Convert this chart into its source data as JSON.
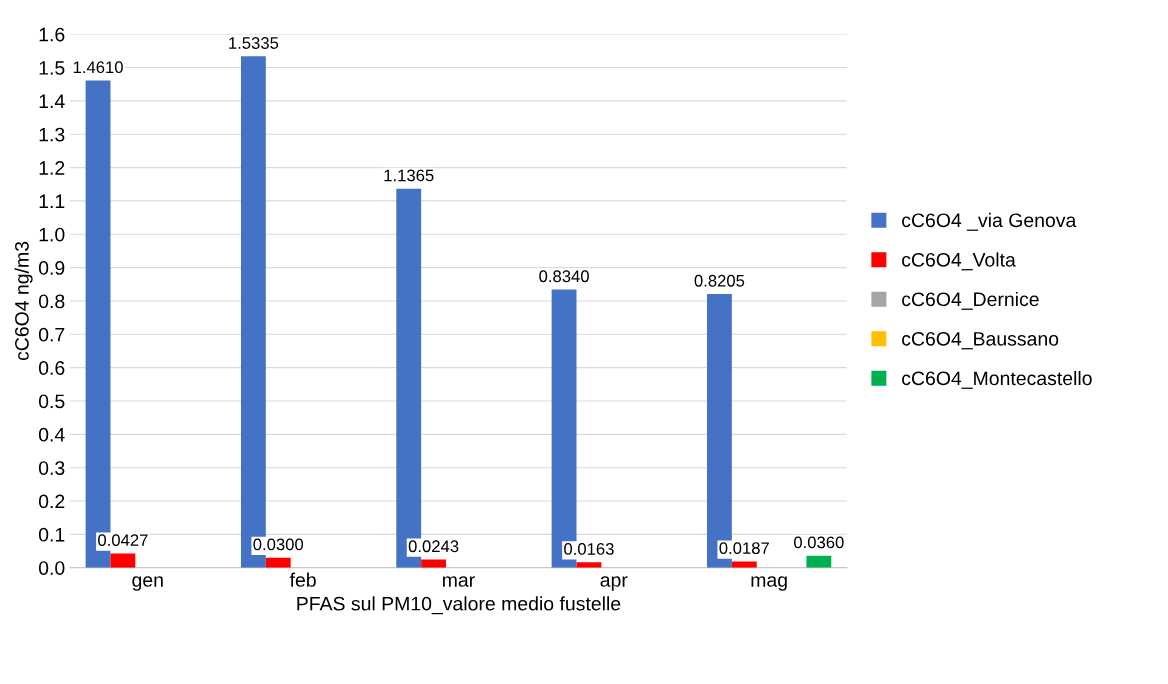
{
  "chart_data": {
    "type": "bar",
    "xlabel": "PFAS sul PM10_valore medio fustelle",
    "ylabel": "cC6O4 ng/m3",
    "categories": [
      "gen",
      "feb",
      "mar",
      "apr",
      "mag"
    ],
    "series": [
      {
        "name": "cC6O4 _via Genova",
        "color": "#4472c4",
        "values": [
          1.461,
          1.5335,
          1.1365,
          0.834,
          0.8205
        ],
        "value_labels": [
          "1.4610",
          "1.5335",
          "1.1365",
          "0.8340",
          "0.8205"
        ]
      },
      {
        "name": "cC6O4_Volta",
        "color": "#ff0000",
        "values": [
          0.0427,
          0.03,
          0.0243,
          0.0163,
          0.0187
        ],
        "value_labels": [
          "0.0427",
          "0.0300",
          "0.0243",
          "0.0163",
          "0.0187"
        ]
      },
      {
        "name": "cC6O4_Dernice",
        "color": "#a5a5a5",
        "values": [
          0,
          0,
          0,
          0,
          0
        ]
      },
      {
        "name": "cC6O4_Baussano",
        "color": "#ffc000",
        "values": [
          0,
          0,
          0,
          0,
          0
        ]
      },
      {
        "name": "cC6O4_Montecastello",
        "color": "#00b050",
        "values": [
          0,
          0,
          0,
          0,
          0.036
        ],
        "value_labels": [
          null,
          null,
          null,
          null,
          "0.0360"
        ]
      }
    ],
    "ylim": [
      0,
      1.6
    ],
    "yticks": [
      {
        "value": 0,
        "label": "0.0"
      },
      0.1,
      0.2,
      0.3,
      0.4,
      0.5,
      0.6,
      0.7,
      0.8,
      0.9,
      {
        "value": 1,
        "label": "1.0"
      },
      1.1,
      1.2,
      1.3,
      1.4,
      1.5,
      1.6
    ],
    "grid": "y",
    "legend": "right"
  }
}
